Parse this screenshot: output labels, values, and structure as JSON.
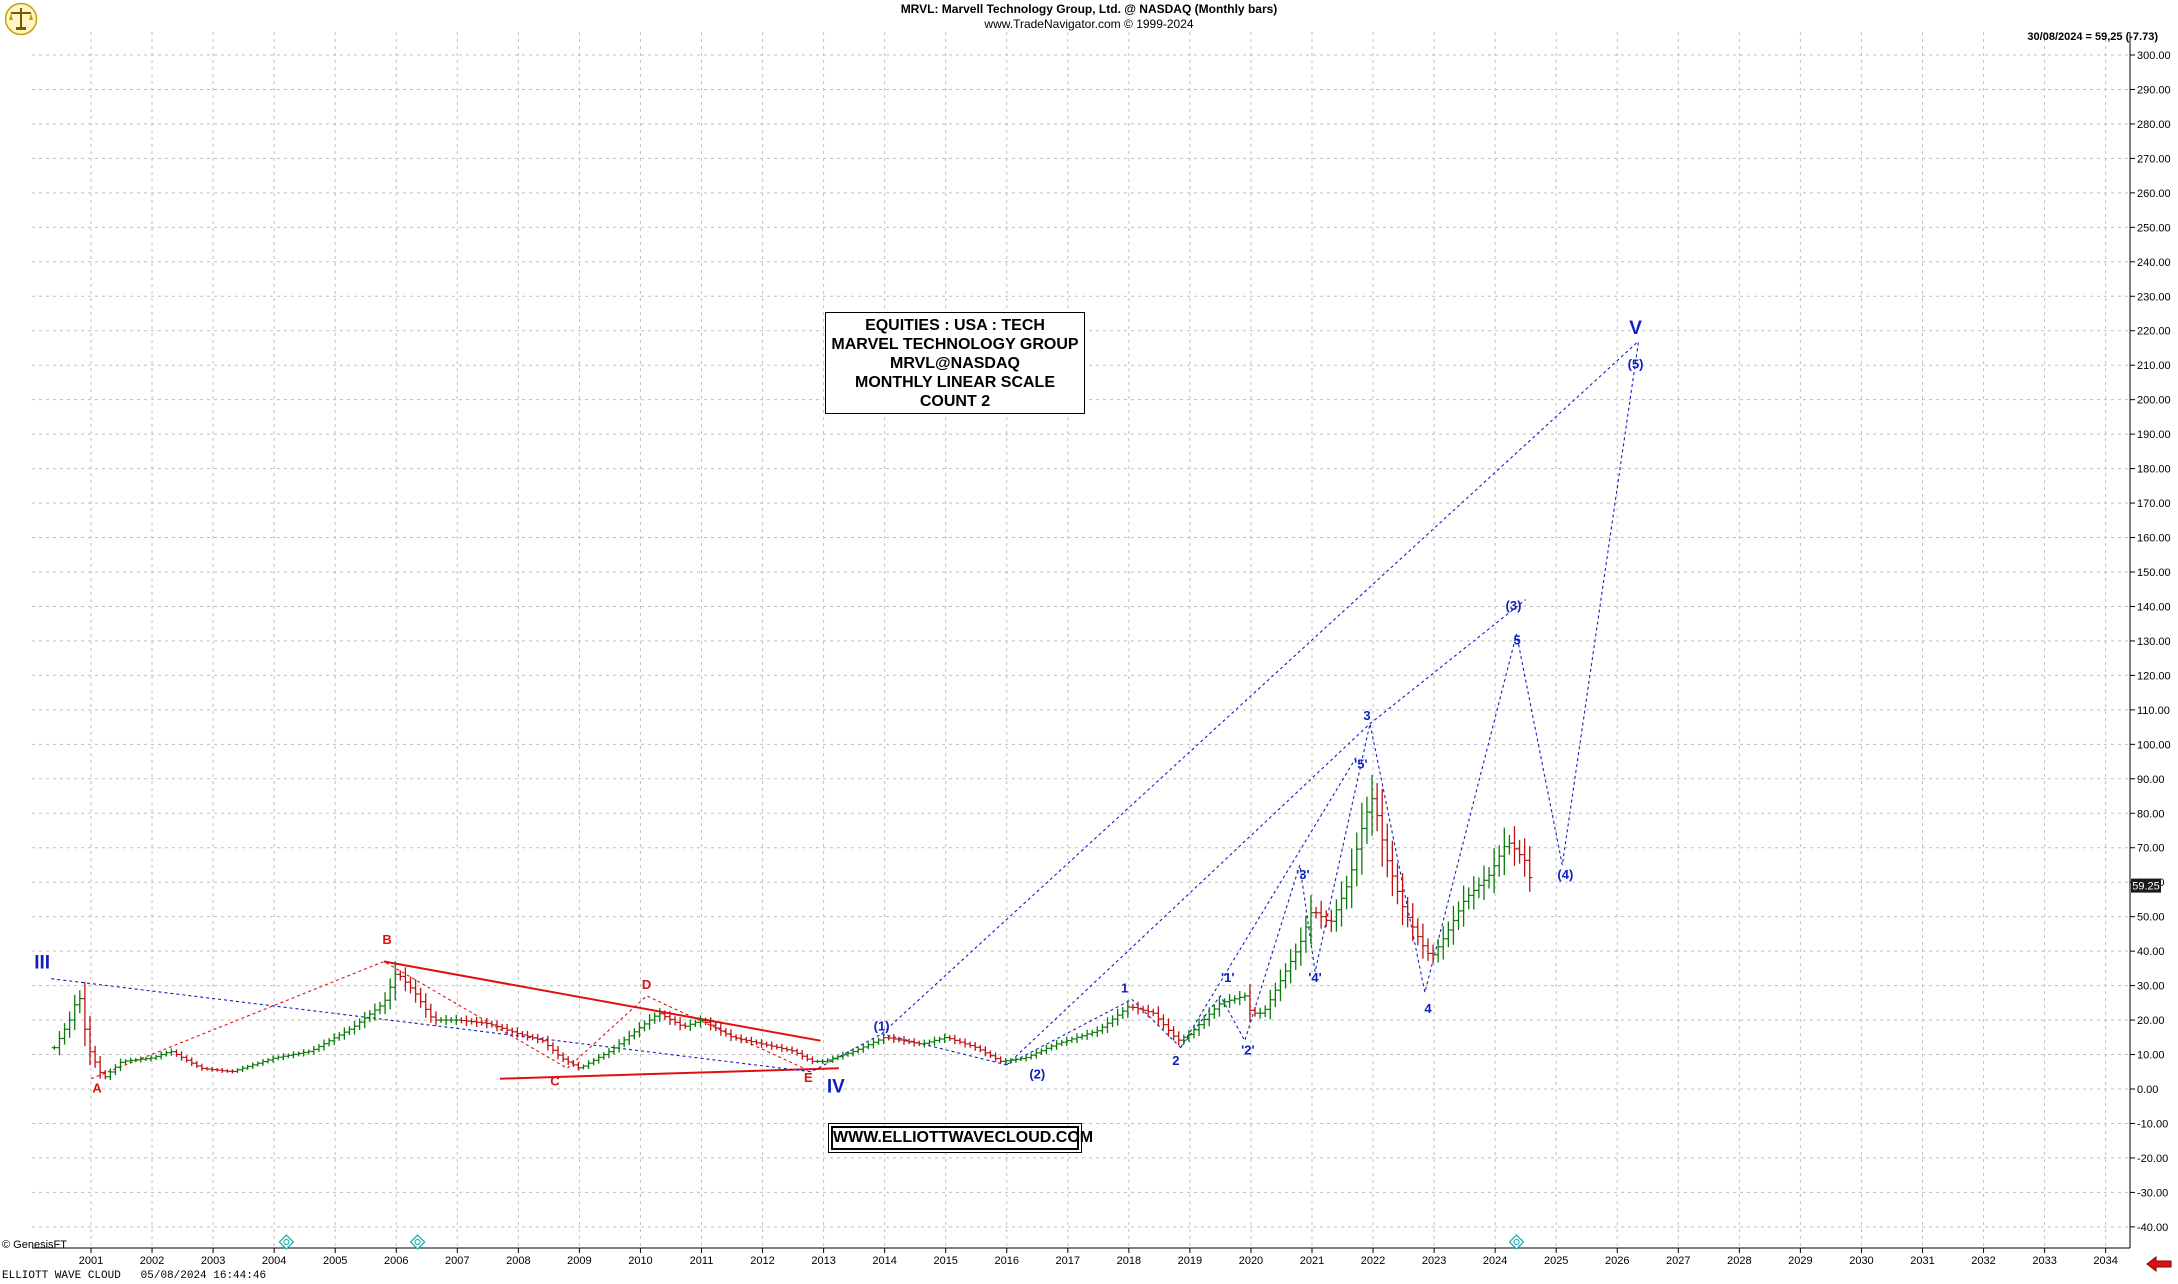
{
  "header": {
    "title": "MRVL:  Marvell Technology Group, Ltd. @ NASDAQ  (Monthly bars)",
    "subtitle": "www.TradeNavigator.com © 1999-2024"
  },
  "last_quote": "30/08/2024 = 59,25 (-7.73)",
  "price_tag": "59.25",
  "info_box": {
    "lines": [
      "EQUITIES : USA : TECH",
      "MARVEL TECHNOLOGY GROUP",
      "MRVL@NASDAQ",
      "MONTHLY LINEAR SCALE",
      "COUNT 2"
    ]
  },
  "website": "WWW.ELLIOTTWAVECLOUD.COM",
  "footer": {
    "provider": "© GenesisFT",
    "brand": "ELLIOTT WAVE CLOUD",
    "timestamp": "05/08/2024 16:44:46"
  },
  "colors": {
    "red": "#e01010",
    "blue": "#1020c0",
    "up_bar": "#0a7a0a",
    "down_bar": "#c01010",
    "grid": "#bfbfbf"
  },
  "chart_data": {
    "type": "line",
    "title": "MRVL:  Marvell Technology Group, Ltd. @ NASDAQ  (Monthly bars)",
    "x_unit": "year",
    "xlim": [
      2000.0,
      2035.5
    ],
    "ylim": [
      -45,
      305
    ],
    "x_ticks": [
      2001,
      2002,
      2003,
      2004,
      2005,
      2006,
      2007,
      2008,
      2009,
      2010,
      2011,
      2012,
      2013,
      2014,
      2015,
      2016,
      2017,
      2018,
      2019,
      2020,
      2021,
      2022,
      2023,
      2024,
      2025,
      2026,
      2027,
      2028,
      2029,
      2030,
      2031,
      2032,
      2033,
      2034
    ],
    "y_ticks": [
      -40,
      -30,
      -20,
      -10,
      0,
      10,
      20,
      30,
      40,
      50,
      60,
      70,
      80,
      90,
      100,
      110,
      120,
      130,
      140,
      150,
      160,
      170,
      180,
      190,
      200,
      210,
      220,
      230,
      240,
      250,
      260,
      270,
      280,
      290,
      300
    ],
    "y_tick_labels": [
      "-40.00",
      "-30.00",
      "-20.00",
      "-10.00",
      "0.00",
      "10.00",
      "20.00",
      "30.00",
      "40.00",
      "50.00",
      "60.00",
      "70.00",
      "80.00",
      "90.00",
      "100.00",
      "110.00",
      "120.00",
      "130.00",
      "140.00",
      "150.00",
      "160.00",
      "170.00",
      "180.00",
      "190.00",
      "200.00",
      "210.00",
      "220.00",
      "230.00",
      "240.00",
      "250.00",
      "260.00",
      "270.00",
      "280.00",
      "290.00",
      "300.00"
    ],
    "price_path": [
      [
        2000.4,
        12
      ],
      [
        2000.65,
        20
      ],
      [
        2000.8,
        28
      ],
      [
        2000.95,
        12
      ],
      [
        2001.2,
        3
      ],
      [
        2001.5,
        8
      ],
      [
        2002.0,
        9
      ],
      [
        2002.3,
        11
      ],
      [
        2002.8,
        6
      ],
      [
        2003.3,
        5
      ],
      [
        2004.0,
        9
      ],
      [
        2004.6,
        11
      ],
      [
        2005.3,
        18
      ],
      [
        2005.8,
        25
      ],
      [
        2006.0,
        34
      ],
      [
        2006.3,
        28
      ],
      [
        2006.6,
        20
      ],
      [
        2007.0,
        20
      ],
      [
        2007.5,
        19
      ],
      [
        2008.0,
        16
      ],
      [
        2008.4,
        14
      ],
      [
        2008.7,
        9
      ],
      [
        2009.0,
        6
      ],
      [
        2009.5,
        11
      ],
      [
        2010.0,
        18
      ],
      [
        2010.3,
        22
      ],
      [
        2010.7,
        18
      ],
      [
        2011.0,
        20
      ],
      [
        2011.5,
        15
      ],
      [
        2012.0,
        13
      ],
      [
        2012.5,
        11
      ],
      [
        2012.8,
        8
      ],
      [
        2013.0,
        8
      ],
      [
        2013.5,
        11
      ],
      [
        2014.0,
        15
      ],
      [
        2014.6,
        13
      ],
      [
        2015.0,
        15
      ],
      [
        2015.5,
        12
      ],
      [
        2015.9,
        8
      ],
      [
        2016.3,
        9
      ],
      [
        2016.8,
        13
      ],
      [
        2017.5,
        17
      ],
      [
        2018.0,
        24
      ],
      [
        2018.4,
        22
      ],
      [
        2018.8,
        14
      ],
      [
        2019.0,
        16
      ],
      [
        2019.5,
        25
      ],
      [
        2019.9,
        27
      ],
      [
        2020.0,
        22
      ],
      [
        2020.2,
        22
      ],
      [
        2020.5,
        32
      ],
      [
        2020.8,
        42
      ],
      [
        2021.0,
        52
      ],
      [
        2021.3,
        48
      ],
      [
        2021.6,
        60
      ],
      [
        2021.85,
        78
      ],
      [
        2022.0,
        85
      ],
      [
        2022.2,
        68
      ],
      [
        2022.5,
        52
      ],
      [
        2022.8,
        42
      ],
      [
        2022.95,
        38
      ],
      [
        2023.2,
        45
      ],
      [
        2023.5,
        55
      ],
      [
        2023.9,
        62
      ],
      [
        2024.2,
        72
      ],
      [
        2024.5,
        66
      ],
      [
        2024.6,
        59
      ]
    ],
    "annotations": [
      {
        "text": "III",
        "x": 2000.2,
        "y": 35,
        "color": "blue",
        "size": "large"
      },
      {
        "text": "A",
        "x": 2001.1,
        "y": -1,
        "color": "red",
        "size": "small"
      },
      {
        "text": "B",
        "x": 2005.85,
        "y": 42,
        "color": "red",
        "size": "small"
      },
      {
        "text": "C",
        "x": 2008.6,
        "y": 1,
        "color": "red",
        "size": "small"
      },
      {
        "text": "D",
        "x": 2010.1,
        "y": 29,
        "color": "red",
        "size": "small"
      },
      {
        "text": "E",
        "x": 2012.75,
        "y": 2,
        "color": "red",
        "size": "small"
      },
      {
        "text": "IV",
        "x": 2013.2,
        "y": -1,
        "color": "blue",
        "size": "large"
      },
      {
        "text": "(1)",
        "x": 2013.95,
        "y": 17,
        "color": "blue",
        "size": "small"
      },
      {
        "text": "(2)",
        "x": 2016.5,
        "y": 3,
        "color": "blue",
        "size": "small"
      },
      {
        "text": "1",
        "x": 2017.93,
        "y": 28,
        "color": "blue",
        "size": "small"
      },
      {
        "text": "2",
        "x": 2018.77,
        "y": 7,
        "color": "blue",
        "size": "small"
      },
      {
        "text": "'1'",
        "x": 2019.62,
        "y": 31,
        "color": "blue",
        "size": "small"
      },
      {
        "text": "'2'",
        "x": 2019.95,
        "y": 10,
        "color": "blue",
        "size": "small"
      },
      {
        "text": "'3'",
        "x": 2020.85,
        "y": 61,
        "color": "blue",
        "size": "small"
      },
      {
        "text": "'4'",
        "x": 2021.05,
        "y": 31,
        "color": "blue",
        "size": "small"
      },
      {
        "text": "'5'",
        "x": 2021.8,
        "y": 93,
        "color": "blue",
        "size": "small"
      },
      {
        "text": "3",
        "x": 2021.9,
        "y": 107,
        "color": "blue",
        "size": "small"
      },
      {
        "text": "4",
        "x": 2022.9,
        "y": 22,
        "color": "blue",
        "size": "small"
      },
      {
        "text": "5",
        "x": 2024.36,
        "y": 129,
        "color": "blue",
        "size": "small"
      },
      {
        "text": "(3)",
        "x": 2024.3,
        "y": 139,
        "color": "blue",
        "size": "small"
      },
      {
        "text": "(4)",
        "x": 2025.15,
        "y": 61,
        "color": "blue",
        "size": "small"
      },
      {
        "text": "(5)",
        "x": 2026.3,
        "y": 209,
        "color": "blue",
        "size": "small"
      },
      {
        "text": "V",
        "x": 2026.3,
        "y": 219,
        "color": "blue",
        "size": "large"
      }
    ],
    "channel_lines": [
      {
        "color": "red",
        "style": "solid",
        "points": [
          [
            2005.8,
            37
          ],
          [
            2012.95,
            14
          ]
        ]
      },
      {
        "color": "red",
        "style": "solid",
        "points": [
          [
            2007.7,
            3
          ],
          [
            2013.25,
            6
          ]
        ]
      },
      {
        "color": "red",
        "style": "dotted",
        "points": [
          [
            2001.0,
            3
          ],
          [
            2005.8,
            37
          ],
          [
            2008.8,
            6
          ],
          [
            2010.1,
            27
          ],
          [
            2012.8,
            5
          ]
        ]
      },
      {
        "color": "blue",
        "style": "dotted",
        "points": [
          [
            2000.35,
            32
          ],
          [
            2012.8,
            5
          ],
          [
            2013.95,
            16
          ],
          [
            2026.35,
            217
          ]
        ]
      },
      {
        "color": "blue",
        "style": "dotted",
        "points": [
          [
            2013.95,
            16
          ],
          [
            2016.0,
            7
          ],
          [
            2018.05,
            26
          ],
          [
            2018.85,
            12
          ],
          [
            2019.5,
            27
          ],
          [
            2019.9,
            14
          ],
          [
            2020.8,
            65
          ],
          [
            2021.05,
            34
          ],
          [
            2021.95,
            106
          ],
          [
            2022.85,
            28
          ],
          [
            2024.35,
            132
          ],
          [
            2025.1,
            65
          ],
          [
            2026.35,
            217
          ]
        ]
      },
      {
        "color": "blue",
        "style": "dotted",
        "points": [
          [
            2016.0,
            7
          ],
          [
            2021.95,
            106
          ],
          [
            2024.5,
            142
          ]
        ]
      },
      {
        "color": "blue",
        "style": "dotted",
        "points": [
          [
            2018.85,
            12
          ],
          [
            2021.75,
            97
          ]
        ]
      }
    ],
    "time_markers": [
      2004.2,
      2006.35,
      2024.35
    ]
  }
}
